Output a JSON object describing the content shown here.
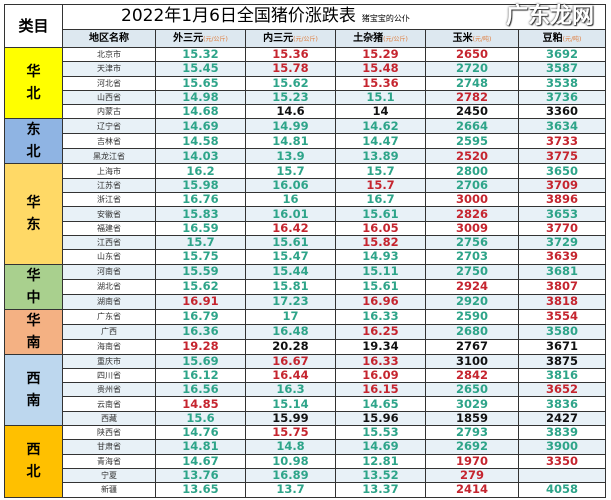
{
  "title": "2022年1月6日全国猪价涨跌表",
  "subtitle": "猪宝宝的公仆",
  "category_header": "类目",
  "columns": [
    {
      "name": "地区名称",
      "unit": ""
    },
    {
      "name": "外三元",
      "unit": "(元/公斤)"
    },
    {
      "name": "内三元",
      "unit": "(元/公斤)"
    },
    {
      "name": "土杂猪",
      "unit": "(元/公斤)"
    },
    {
      "name": "玉米",
      "unit": "(元/吨)"
    },
    {
      "name": "豆粕",
      "unit": "(元/吨)"
    }
  ],
  "colors": {
    "g": "#2ea489",
    "r": "#c5252f",
    "k": "#111111"
  },
  "groups": [
    {
      "label": "华北",
      "color": "#ffff00",
      "rows": [
        [
          "北京市",
          "15.32",
          "15.36",
          "15.29",
          "2650",
          "3692",
          "grrrg"
        ],
        [
          "天津市",
          "15.45",
          "15.78",
          "15.48",
          "2720",
          "3587",
          "grrgg"
        ],
        [
          "河北省",
          "15.65",
          "15.62",
          "15.36",
          "2748",
          "3538",
          "ggrgg"
        ],
        [
          "山西省",
          "14.98",
          "15.23",
          "15.1",
          "2782",
          "3736",
          "gggrg"
        ],
        [
          "内蒙古",
          "14.68",
          "14.6",
          "14",
          "2450",
          "3360",
          "gkkkk"
        ]
      ]
    },
    {
      "label": "东北",
      "color": "#8fb4e3",
      "rows": [
        [
          "辽宁省",
          "14.69",
          "14.99",
          "14.62",
          "2664",
          "3634",
          "ggggg"
        ],
        [
          "吉林省",
          "14.58",
          "14.81",
          "14.47",
          "2595",
          "3733",
          "ggggr"
        ],
        [
          "黑龙江省",
          "14.03",
          "13.9",
          "13.89",
          "2520",
          "3775",
          "gggrr"
        ]
      ]
    },
    {
      "label": "华东",
      "color": "#ffd966",
      "rows": [
        [
          "上海市",
          "16.2",
          "15.7",
          "15.7",
          "2800",
          "3650",
          "ggggg"
        ],
        [
          "江苏省",
          "15.98",
          "16.06",
          "15.7",
          "2706",
          "3709",
          "ggrgr"
        ],
        [
          "浙江省",
          "16.76",
          "16",
          "16.7",
          "3000",
          "3896",
          "gggrr"
        ],
        [
          "安徽省",
          "15.83",
          "16.01",
          "15.61",
          "2826",
          "3653",
          "gggrg"
        ],
        [
          "福建省",
          "16.59",
          "16.42",
          "16.05",
          "3009",
          "3770",
          "grrrr"
        ],
        [
          "江西省",
          "15.7",
          "15.61",
          "15.82",
          "2756",
          "3729",
          "ggrgg"
        ],
        [
          "山东省",
          "15.75",
          "15.47",
          "14.93",
          "2703",
          "3639",
          "ggggr"
        ]
      ]
    },
    {
      "label": "华中",
      "color": "#a9d08e",
      "rows": [
        [
          "河南省",
          "15.59",
          "15.44",
          "15.11",
          "2750",
          "3681",
          "ggggg"
        ],
        [
          "湖北省",
          "15.62",
          "15.81",
          "15.61",
          "2924",
          "3807",
          "gggrr"
        ],
        [
          "湖南省",
          "16.91",
          "17.23",
          "16.96",
          "2920",
          "3818",
          "rgrgr"
        ]
      ]
    },
    {
      "label": "华南",
      "color": "#f4b183",
      "rows": [
        [
          "广东省",
          "16.79",
          "17",
          "16.33",
          "2590",
          "3554",
          "ggggr"
        ],
        [
          "广西",
          "16.36",
          "16.48",
          "16.25",
          "2680",
          "3580",
          "ggrgg"
        ],
        [
          "海南省",
          "19.28",
          "20.28",
          "19.34",
          "2767",
          "3671",
          "rkkkk"
        ]
      ]
    },
    {
      "label": "西南",
      "color": "#bdd7ee",
      "rows": [
        [
          "重庆市",
          "15.69",
          "16.67",
          "16.33",
          "3100",
          "3875",
          "grrkk"
        ],
        [
          "四川省",
          "16.12",
          "16.44",
          "16.09",
          "2842",
          "3816",
          "grrrg"
        ],
        [
          "贵州省",
          "16.56",
          "16.3",
          "16.15",
          "2650",
          "3652",
          "ggrgr"
        ],
        [
          "云南省",
          "14.85",
          "15.14",
          "14.65",
          "3029",
          "3836",
          "rgggg"
        ],
        [
          "西藏",
          "15.6",
          "15.99",
          "15.96",
          "1859",
          "2427",
          "gkkkk"
        ]
      ]
    },
    {
      "label": "西北",
      "color": "#ffc000",
      "rows": [
        [
          "陕西省",
          "14.76",
          "15.75",
          "15.53",
          "2793",
          "3839",
          "grggg"
        ],
        [
          "甘肃省",
          "14.81",
          "14.8",
          "14.69",
          "2692",
          "3900",
          "ggggg"
        ],
        [
          "青海省",
          "14.67",
          "10.98",
          "12.81",
          "1970",
          "3350",
          "gggrr"
        ],
        [
          "宁夏",
          "13.76",
          "16.89",
          "13.52",
          "279",
          "",
          "gggrr"
        ],
        [
          "新疆",
          "13.65",
          "13.7",
          "13.37",
          "2414",
          "4058",
          "gggrg"
        ]
      ]
    }
  ],
  "watermark": "广东龙网"
}
